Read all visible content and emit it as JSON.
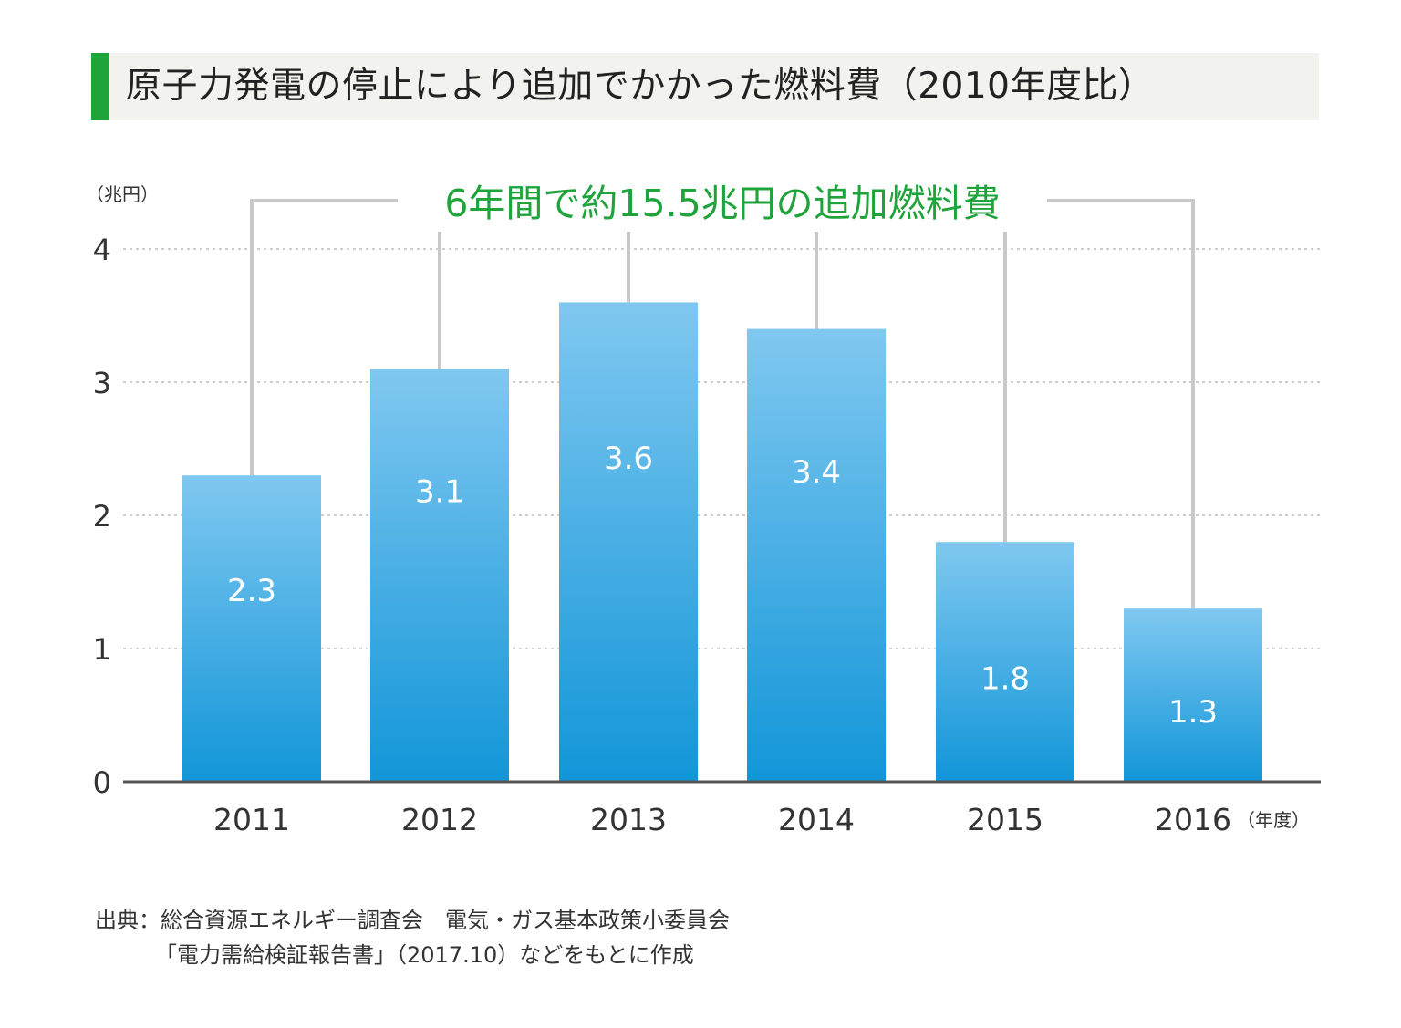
{
  "header": {
    "title": "原子力発電の停止により追加でかかった燃料費（2010年度比）"
  },
  "chart_data": {
    "type": "bar",
    "title": "原子力発電の停止により追加でかかった燃料費（2010年度比）",
    "ylabel": "（兆円）",
    "xlabel": "（年度）",
    "categories": [
      "2011",
      "2012",
      "2013",
      "2014",
      "2015",
      "2016"
    ],
    "values": [
      2.3,
      3.1,
      3.6,
      3.4,
      1.8,
      1.3
    ],
    "value_labels": [
      "2.3",
      "3.1",
      "3.6",
      "3.4",
      "1.8",
      "1.3"
    ],
    "ylim": [
      0,
      4
    ],
    "yticks": [
      "0",
      "1",
      "2",
      "3",
      "4"
    ],
    "grid": true,
    "annotation": "6年間で約15.5兆円の追加燃料費",
    "colors": {
      "bar_top": "#7fc8f0",
      "bar_bottom": "#1296d8",
      "annotation": "#1ea43a",
      "bracket": "#c8c8c8",
      "grid": "#bdbdbd",
      "axis": "#555555"
    }
  },
  "source": {
    "line1": "出典：総合資源エネルギー調査会　電気・ガス基本政策小委員会",
    "line2": "「電力需給検証報告書」（2017.10）などをもとに作成"
  }
}
